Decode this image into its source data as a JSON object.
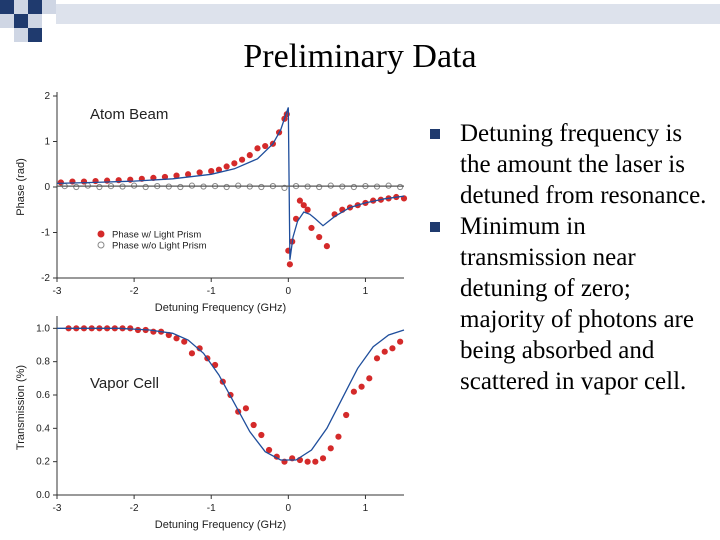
{
  "slide": {
    "title": "Preliminary Data",
    "bullets": [
      "Detuning frequency is the amount the laser is detuned from resonance.",
      "Minimum in transmission near detuning of zero; majority of photons are being absorbed and scattered in vapor cell."
    ],
    "accent_color": "#1f3a6e"
  },
  "chart_data": [
    {
      "type": "scatter",
      "title": "",
      "annotation": "Atom Beam",
      "xlabel": "Detuning Frequency (GHz)",
      "ylabel": "Phase (rad)",
      "xlim": [
        -3,
        1.5
      ],
      "ylim": [
        -2,
        2
      ],
      "xticks": [
        "-3",
        "-2",
        "-1",
        "0",
        "1"
      ],
      "yticks": [
        "-2",
        "-1",
        "0",
        "1",
        "2"
      ],
      "legend_position": "bottom-left",
      "series": [
        {
          "name": "Phase w/ Light Prism",
          "marker": "filled-circle",
          "color": "#d42a2a",
          "x": [
            -2.95,
            -2.8,
            -2.65,
            -2.5,
            -2.35,
            -2.2,
            -2.05,
            -1.9,
            -1.75,
            -1.6,
            -1.45,
            -1.3,
            -1.15,
            -1.0,
            -0.9,
            -0.8,
            -0.7,
            -0.6,
            -0.5,
            -0.4,
            -0.3,
            -0.2,
            -0.12,
            -0.05,
            -0.02,
            0.0,
            0.02,
            0.05,
            0.1,
            0.15,
            0.2,
            0.25,
            0.3,
            0.4,
            0.5,
            0.6,
            0.7,
            0.8,
            0.9,
            1.0,
            1.1,
            1.2,
            1.3,
            1.4,
            1.5
          ],
          "y": [
            0.1,
            0.12,
            0.12,
            0.13,
            0.14,
            0.15,
            0.16,
            0.18,
            0.2,
            0.22,
            0.25,
            0.28,
            0.32,
            0.35,
            0.38,
            0.45,
            0.52,
            0.6,
            0.7,
            0.85,
            0.9,
            0.95,
            1.2,
            1.5,
            1.6,
            -1.4,
            -1.7,
            -1.2,
            -0.7,
            -0.3,
            -0.4,
            -0.5,
            -0.9,
            -1.1,
            -1.3,
            -0.6,
            -0.5,
            -0.45,
            -0.4,
            -0.35,
            -0.3,
            -0.28,
            -0.25,
            -0.22,
            -0.25
          ]
        },
        {
          "name": "Phase w/o Light Prism",
          "marker": "open-circle",
          "color": "#888888",
          "x": [
            -2.9,
            -2.75,
            -2.6,
            -2.45,
            -2.3,
            -2.15,
            -2.0,
            -1.85,
            -1.7,
            -1.55,
            -1.4,
            -1.25,
            -1.1,
            -0.95,
            -0.8,
            -0.65,
            -0.5,
            -0.35,
            -0.2,
            -0.05,
            0.1,
            0.25,
            0.4,
            0.55,
            0.7,
            0.85,
            1.0,
            1.15,
            1.3,
            1.45
          ],
          "y": [
            0.02,
            0.0,
            0.03,
            0.0,
            0.02,
            0.01,
            0.03,
            0.0,
            0.02,
            0.01,
            0.0,
            0.03,
            0.01,
            0.02,
            0.0,
            0.03,
            0.01,
            0.0,
            0.02,
            -0.02,
            0.02,
            0.01,
            0.0,
            0.03,
            0.01,
            0.0,
            0.02,
            0.01,
            0.03,
            0.0
          ]
        },
        {
          "name": "",
          "marker": "line",
          "color": "#1f4e9c",
          "x": [
            -3,
            -2.5,
            -2.0,
            -1.5,
            -1.0,
            -0.7,
            -0.4,
            -0.2,
            -0.1,
            -0.04,
            0.0,
            0.02,
            0.06,
            0.12,
            0.2,
            0.28,
            0.35,
            0.45,
            0.6,
            0.8,
            1.0,
            1.25,
            1.5
          ],
          "y": [
            0.08,
            0.1,
            0.13,
            0.18,
            0.28,
            0.4,
            0.62,
            0.95,
            1.25,
            1.55,
            1.75,
            -1.6,
            -1.1,
            -0.75,
            -0.55,
            -0.6,
            -0.7,
            -0.85,
            -0.65,
            -0.45,
            -0.35,
            -0.26,
            -0.2
          ]
        },
        {
          "name": "",
          "marker": "line",
          "color": "#555555",
          "x": [
            -3,
            1.5
          ],
          "y": [
            0.02,
            0.02
          ]
        }
      ]
    },
    {
      "type": "scatter",
      "title": "",
      "annotation": "Vapor Cell",
      "xlabel": "Detuning Frequency (GHz)",
      "ylabel": "Transmission (%)",
      "xlim": [
        -3,
        1.5
      ],
      "ylim": [
        0,
        1.05
      ],
      "xticks": [
        "-3",
        "-2",
        "-1",
        "0",
        "1"
      ],
      "yticks": [
        "0.0",
        "0.2",
        "0.4",
        "0.6",
        "0.8",
        "1.0"
      ],
      "series": [
        {
          "name": "",
          "marker": "filled-circle",
          "color": "#d42a2a",
          "x": [
            -2.85,
            -2.75,
            -2.65,
            -2.55,
            -2.45,
            -2.35,
            -2.25,
            -2.15,
            -2.05,
            -1.95,
            -1.85,
            -1.75,
            -1.65,
            -1.55,
            -1.45,
            -1.35,
            -1.25,
            -1.15,
            -1.05,
            -0.95,
            -0.85,
            -0.75,
            -0.65,
            -0.55,
            -0.45,
            -0.35,
            -0.25,
            -0.15,
            -0.05,
            0.05,
            0.15,
            0.25,
            0.35,
            0.45,
            0.55,
            0.65,
            0.75,
            0.85,
            0.95,
            1.05,
            1.15,
            1.25,
            1.35,
            1.45
          ],
          "y": [
            1.0,
            1.0,
            1.0,
            1.0,
            1.0,
            1.0,
            1.0,
            1.0,
            1.0,
            0.99,
            0.99,
            0.98,
            0.98,
            0.96,
            0.94,
            0.92,
            0.85,
            0.88,
            0.82,
            0.78,
            0.68,
            0.6,
            0.5,
            0.52,
            0.42,
            0.36,
            0.27,
            0.23,
            0.2,
            0.22,
            0.21,
            0.2,
            0.2,
            0.22,
            0.28,
            0.35,
            0.48,
            0.62,
            0.65,
            0.7,
            0.82,
            0.86,
            0.88,
            0.92
          ]
        },
        {
          "name": "",
          "marker": "line",
          "color": "#1f4e9c",
          "x": [
            -3,
            -2.2,
            -1.8,
            -1.5,
            -1.3,
            -1.1,
            -0.9,
            -0.7,
            -0.5,
            -0.3,
            -0.1,
            0.1,
            0.3,
            0.5,
            0.7,
            0.9,
            1.1,
            1.3,
            1.5
          ],
          "y": [
            1.0,
            1.0,
            0.99,
            0.97,
            0.93,
            0.85,
            0.72,
            0.55,
            0.38,
            0.26,
            0.21,
            0.21,
            0.27,
            0.4,
            0.58,
            0.76,
            0.89,
            0.96,
            0.99
          ]
        }
      ]
    }
  ]
}
